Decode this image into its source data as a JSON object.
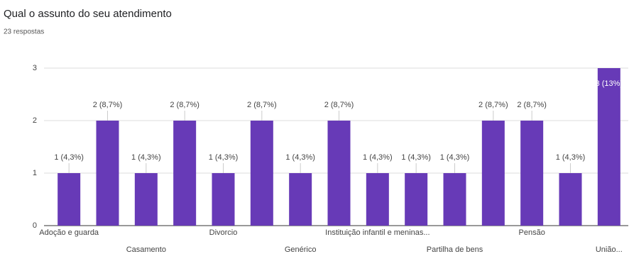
{
  "chart_data": {
    "type": "bar",
    "title": "Qual o assunto do seu atendimento",
    "subtitle": "23 respostas",
    "categories": [
      "Adoção e guarda",
      null,
      "Casamento",
      null,
      "Divorcio",
      null,
      "Genérico",
      null,
      "Instituição infantil e meninas...",
      null,
      "Partilha de bens",
      null,
      "Pensão",
      null,
      "União..."
    ],
    "values": [
      1,
      2,
      1,
      2,
      1,
      2,
      1,
      2,
      1,
      1,
      1,
      2,
      2,
      1,
      3
    ],
    "value_labels": [
      "1 (4,3%)",
      "2 (8,7%)",
      "1 (4,3%)",
      "2 (8,7%)",
      "1 (4,3%)",
      "2 (8,7%)",
      "1 (4,3%)",
      "2 (8,7%)",
      "1 (4,3%)",
      "1 (4,3%)",
      "1 (4,3%)",
      "2 (8,7%)",
      "2 (8,7%)",
      "1 (4,3%)",
      "3 (13%)"
    ],
    "color": "#673ab7",
    "ylim": [
      0,
      3
    ],
    "yticks": [
      0,
      1,
      2,
      3
    ],
    "grid": true
  }
}
